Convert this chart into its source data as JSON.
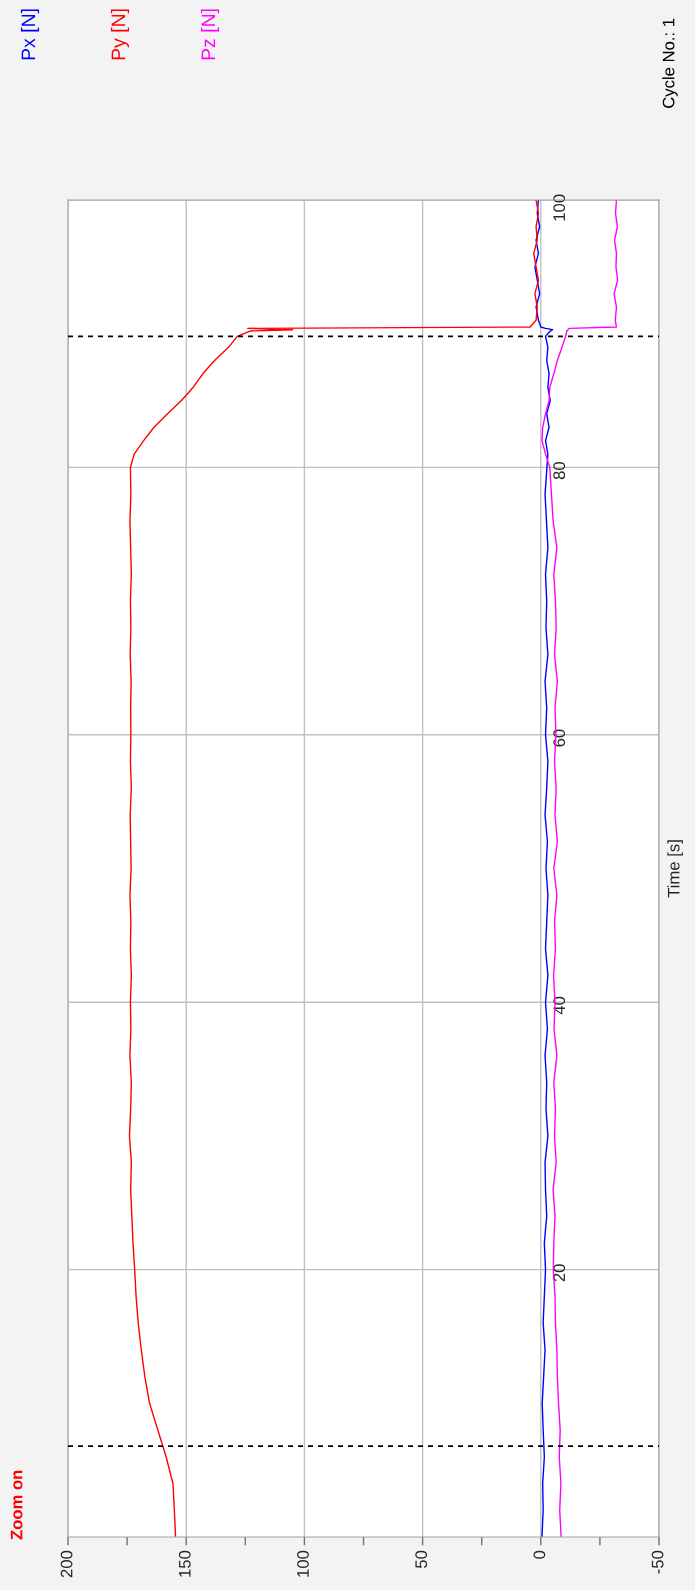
{
  "chart_data": {
    "type": "line",
    "ylabel": "Time [s]",
    "series": [
      {
        "name": "Px [N]",
        "color": "#0000ff",
        "x": [
          -0.5,
          -1,
          -0.8,
          -1.5,
          -1,
          -0.6,
          -1.2,
          -1.8,
          -1,
          -1.5,
          -2,
          -1.5,
          -2.5,
          -2,
          -1.8,
          -3,
          -2.2,
          -2.5,
          -1.8,
          -2.8,
          -2,
          -3,
          -2,
          -2.5,
          -3,
          -2.2,
          -2.8,
          -1.8,
          -2.5,
          -3,
          -2,
          -2.5,
          -1.8,
          -3,
          -2.2,
          -2.5,
          -2,
          -3,
          -2.4,
          -1.8,
          -2.6,
          -3,
          -2,
          -3.5,
          -2.5,
          -4,
          -3,
          -3.5,
          -2.5,
          -3,
          -2,
          -4,
          -5,
          -2,
          0,
          1,
          2,
          0.5,
          1.5,
          2.5,
          1,
          2,
          0.5,
          1.5,
          1
        ],
        "values": [
          0,
          2,
          4,
          6,
          8,
          10,
          12,
          14,
          16,
          18,
          20,
          22,
          24,
          26,
          28,
          30,
          32,
          34,
          36,
          38,
          40,
          42,
          44,
          46,
          48,
          50,
          52,
          54,
          56,
          58,
          60,
          62,
          64,
          66,
          68,
          70,
          72,
          74,
          76,
          78,
          80,
          81,
          82,
          83,
          84,
          85,
          86,
          87,
          88,
          89,
          89.8,
          90.2,
          90.3,
          90.4,
          90.5,
          91,
          92,
          93,
          94,
          95,
          96,
          97,
          98,
          99,
          100
        ]
      },
      {
        "name": "Py [N]",
        "color": "#ff0000",
        "x": [
          154.5,
          155,
          155.6,
          158.5,
          162,
          165.5,
          167.5,
          169,
          170.3,
          171.2,
          171.8,
          172.5,
          173,
          173.5,
          173.2,
          174,
          173.5,
          173.2,
          173.8,
          173.4,
          173.6,
          173.2,
          173.6,
          173.4,
          173.8,
          173.3,
          173.5,
          173.7,
          173.2,
          173.6,
          173.4,
          173.5,
          173.3,
          173.7,
          173.4,
          173.6,
          173.2,
          173.5,
          173.8,
          173.4,
          173.6,
          172,
          168,
          163.6,
          158,
          152,
          147,
          143,
          138,
          132,
          128.4,
          123,
          105,
          124,
          4.5,
          2,
          1.5,
          2.5,
          1,
          2,
          3,
          1.5,
          2,
          1,
          2
        ],
        "values": [
          0,
          2,
          4,
          6,
          8,
          10,
          12,
          14,
          16,
          18,
          20,
          22,
          24,
          26,
          28,
          30,
          32,
          34,
          36,
          38,
          40,
          42,
          44,
          46,
          48,
          50,
          52,
          54,
          56,
          58,
          60,
          62,
          64,
          66,
          68,
          70,
          72,
          74,
          76,
          78,
          80,
          81,
          82,
          83,
          84,
          85,
          86,
          87,
          88,
          89,
          89.8,
          90.2,
          90.3,
          90.4,
          90.5,
          91,
          92,
          93,
          94,
          95,
          96,
          97,
          98,
          99,
          100
        ]
      },
      {
        "name": "Pz [N]",
        "color": "#ff00ff",
        "x": [
          -8.6,
          -8,
          -8.5,
          -7.8,
          -8.2,
          -7.5,
          -7,
          -6.8,
          -6.2,
          -6,
          -5.3,
          -5.5,
          -6,
          -5.2,
          -6.5,
          -5.8,
          -6.2,
          -5.5,
          -6.8,
          -5.6,
          -6,
          -5.4,
          -6.2,
          -5.8,
          -6.8,
          -5.5,
          -7,
          -6,
          -6.5,
          -5.8,
          -6.4,
          -6,
          -7,
          -5.8,
          -6.5,
          -6.2,
          -5.5,
          -6.8,
          -5.2,
          -4.5,
          -3.8,
          -2,
          -0.5,
          -0.8,
          -2,
          -3.5,
          -3.8,
          -5.5,
          -7,
          -9,
          -10.5,
          -11,
          -11.5,
          -12,
          -32,
          -31.5,
          -32,
          -31,
          -32.5,
          -31.8,
          -32,
          -31.2,
          -32.4,
          -31.6,
          -32
        ],
        "values": [
          0,
          2,
          4,
          6,
          8,
          10,
          12,
          14,
          16,
          18,
          20,
          22,
          24,
          26,
          28,
          30,
          32,
          34,
          36,
          38,
          40,
          42,
          44,
          46,
          48,
          50,
          52,
          54,
          56,
          58,
          60,
          62,
          64,
          66,
          68,
          70,
          72,
          74,
          76,
          78,
          80,
          81,
          82,
          83,
          84,
          85,
          86,
          87,
          88,
          89,
          89.8,
          90.2,
          90.3,
          90.4,
          90.5,
          91,
          92,
          93,
          94,
          95,
          96,
          97,
          98,
          99,
          100
        ]
      }
    ],
    "xlim": [
      200,
      -50
    ],
    "xticks": [
      200,
      {
        "value": 175,
        "label": null
      },
      150,
      {
        "value": 125,
        "label": null
      },
      100,
      {
        "value": 75,
        "label": null
      },
      50,
      {
        "value": 25,
        "label": null
      },
      0,
      {
        "value": -25,
        "label": null
      },
      -50
    ],
    "ylim": [
      0,
      100
    ],
    "yticks": [
      20,
      40,
      60,
      80,
      100
    ],
    "ref_lines": [
      {
        "axis": "y",
        "value": 6.8,
        "color": "#000000",
        "line_style": "dashed"
      },
      {
        "axis": "y",
        "value": 89.8,
        "color": "#000000",
        "line_style": "dashed"
      }
    ],
    "grid": true,
    "legend": "top left",
    "marker": "none",
    "line_style": "solid",
    "annotations": [
      "Cycle No.: 1",
      "Zoom on"
    ]
  }
}
